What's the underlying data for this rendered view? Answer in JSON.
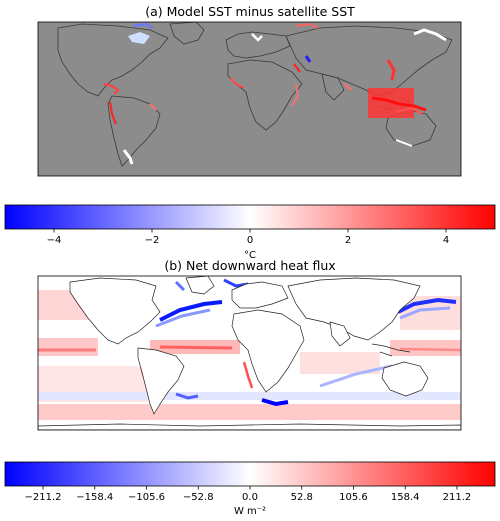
{
  "chart_data": [
    {
      "type": "heatmap",
      "title": "(a) Model SST minus satellite SST",
      "colorbar": {
        "label": "°C",
        "ticks": [
          "−4",
          "−2",
          "0",
          "2",
          "4"
        ],
        "tick_values": [
          -4,
          -2,
          0,
          2,
          4
        ],
        "range": [
          -5,
          5
        ],
        "colormap": "bwr"
      },
      "colors": {
        "land_mask": "#8c8c8c",
        "coast": "#333333",
        "warm": "#ff0000",
        "cold": "#0000ff"
      }
    },
    {
      "type": "heatmap",
      "title": "(b) Net downward heat flux",
      "colorbar": {
        "label": "W m⁻²",
        "ticks": [
          "−211.2",
          "−158.4",
          "−105.6",
          "−52.8",
          "0.0",
          "52.8",
          "105.6",
          "158.4",
          "211.2"
        ],
        "tick_values": [
          -211.2,
          -158.4,
          -105.6,
          -52.8,
          0.0,
          52.8,
          105.6,
          158.4,
          211.2
        ],
        "range": [
          -250,
          250
        ],
        "colormap": "bwr"
      },
      "colors": {
        "land": "#ffffff",
        "coast": "#222222"
      }
    }
  ]
}
